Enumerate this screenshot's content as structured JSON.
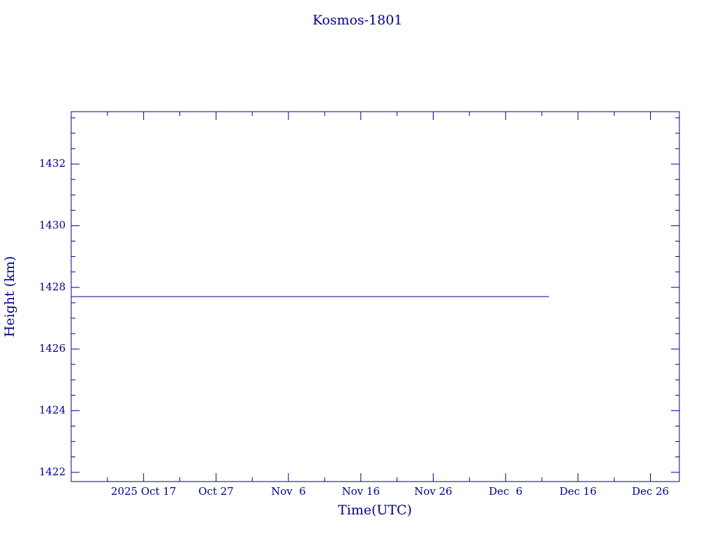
{
  "chart_data": {
    "type": "line",
    "title": "Kosmos-1801",
    "x_label": "Time(UTC)",
    "y_label": "Height (km)",
    "x": [
      "2025-10-07",
      "2025-12-12"
    ],
    "series": [
      {
        "name": "height",
        "color": "#00008b",
        "values": [
          1427.7,
          1427.7
        ]
      }
    ],
    "xlim": [
      "2025-10-07",
      "2025-12-30"
    ],
    "xticks": [
      {
        "value": "2025-10-17",
        "label": "2025 Oct 17"
      },
      {
        "value": "2025-10-27",
        "label": "Oct 27"
      },
      {
        "value": "2025-11-06",
        "label": "Nov  6"
      },
      {
        "value": "2025-11-16",
        "label": "Nov 16"
      },
      {
        "value": "2025-11-26",
        "label": "Nov 26"
      },
      {
        "value": "2025-12-06",
        "label": "Dec  6"
      },
      {
        "value": "2025-12-16",
        "label": "Dec 16"
      },
      {
        "value": "2025-12-26",
        "label": "Dec 26"
      }
    ],
    "xminorticks": [
      "2025-10-12",
      "2025-10-22",
      "2025-11-01",
      "2025-11-11",
      "2025-11-21",
      "2025-12-01",
      "2025-12-11",
      "2025-12-21"
    ],
    "ylim": [
      1421.7,
      1433.7
    ],
    "yticks": [
      1422,
      1424,
      1426,
      1428,
      1430,
      1432
    ],
    "yminorticks": [
      1422.5,
      1423,
      1423.5,
      1424.5,
      1425,
      1425.5,
      1426.5,
      1427,
      1427.5,
      1428.5,
      1429,
      1429.5,
      1430.5,
      1431,
      1431.5,
      1432.5,
      1433,
      1433.5
    ]
  }
}
